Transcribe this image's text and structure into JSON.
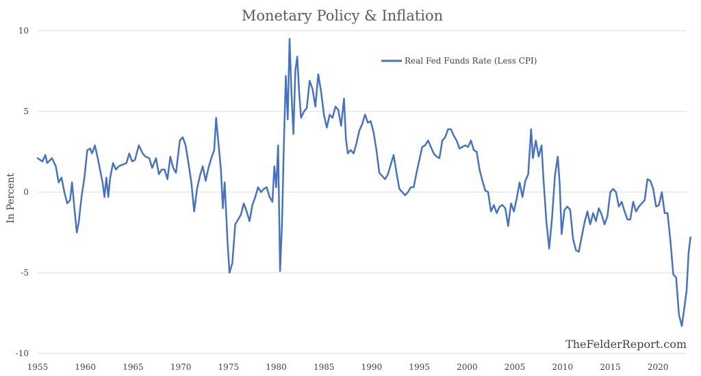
{
  "chart_data": {
    "type": "line",
    "title": "Monetary Policy & Inflation",
    "xlabel": "",
    "ylabel": "In Percent",
    "xlim": [
      1955,
      2023
    ],
    "ylim": [
      -10,
      10
    ],
    "x_ticks": [
      "1955",
      "1960",
      "1965",
      "1970",
      "1975",
      "1980",
      "1985",
      "1990",
      "1995",
      "2000",
      "2005",
      "2010",
      "2015",
      "2020"
    ],
    "y_ticks": [
      "10",
      "5",
      "0",
      "-5",
      "-10"
    ],
    "grid": "horizontal",
    "legend_position": "top-right",
    "watermark": "TheFelderReport.com",
    "series": [
      {
        "name": "Real Fed Funds Rate (Less CPI)",
        "color": "#4472C4",
        "points": [
          [
            1955.0,
            2.1
          ],
          [
            1955.5,
            1.9
          ],
          [
            1955.8,
            2.3
          ],
          [
            1956.0,
            1.8
          ],
          [
            1956.5,
            2.1
          ],
          [
            1956.9,
            1.6
          ],
          [
            1957.2,
            0.6
          ],
          [
            1957.5,
            0.9
          ],
          [
            1957.8,
            0.0
          ],
          [
            1958.1,
            -0.7
          ],
          [
            1958.4,
            -0.5
          ],
          [
            1958.6,
            0.6
          ],
          [
            1958.9,
            -1.3
          ],
          [
            1959.1,
            -2.5
          ],
          [
            1959.3,
            -1.9
          ],
          [
            1959.6,
            -0.3
          ],
          [
            1959.9,
            0.9
          ],
          [
            1960.2,
            2.6
          ],
          [
            1960.5,
            2.7
          ],
          [
            1960.7,
            2.4
          ],
          [
            1961.0,
            2.9
          ],
          [
            1961.3,
            2.1
          ],
          [
            1961.6,
            1.2
          ],
          [
            1961.8,
            0.6
          ],
          [
            1962.0,
            -0.3
          ],
          [
            1962.2,
            0.9
          ],
          [
            1962.4,
            -0.3
          ],
          [
            1962.6,
            0.9
          ],
          [
            1962.9,
            1.8
          ],
          [
            1963.2,
            1.4
          ],
          [
            1963.5,
            1.6
          ],
          [
            1963.9,
            1.7
          ],
          [
            1964.3,
            1.8
          ],
          [
            1964.6,
            2.4
          ],
          [
            1964.9,
            1.9
          ],
          [
            1965.2,
            2.0
          ],
          [
            1965.6,
            2.9
          ],
          [
            1966.0,
            2.4
          ],
          [
            1966.3,
            2.2
          ],
          [
            1966.7,
            2.1
          ],
          [
            1967.0,
            1.5
          ],
          [
            1967.4,
            2.1
          ],
          [
            1967.7,
            1.1
          ],
          [
            1968.0,
            1.4
          ],
          [
            1968.3,
            1.4
          ],
          [
            1968.6,
            0.8
          ],
          [
            1968.9,
            2.2
          ],
          [
            1969.2,
            1.5
          ],
          [
            1969.5,
            1.2
          ],
          [
            1969.9,
            3.2
          ],
          [
            1970.2,
            3.4
          ],
          [
            1970.5,
            2.9
          ],
          [
            1970.8,
            1.8
          ],
          [
            1971.1,
            0.6
          ],
          [
            1971.4,
            -1.2
          ],
          [
            1971.7,
            0.2
          ],
          [
            1972.0,
            1.0
          ],
          [
            1972.3,
            1.6
          ],
          [
            1972.6,
            0.7
          ],
          [
            1972.9,
            1.5
          ],
          [
            1973.2,
            2.1
          ],
          [
            1973.5,
            2.6
          ],
          [
            1973.7,
            4.6
          ],
          [
            1973.9,
            3.3
          ],
          [
            1974.2,
            1.4
          ],
          [
            1974.4,
            -1.0
          ],
          [
            1974.6,
            0.6
          ],
          [
            1974.9,
            -3.1
          ],
          [
            1975.1,
            -5.0
          ],
          [
            1975.4,
            -4.4
          ],
          [
            1975.7,
            -2.0
          ],
          [
            1976.0,
            -1.7
          ],
          [
            1976.3,
            -1.4
          ],
          [
            1976.6,
            -0.7
          ],
          [
            1976.9,
            -1.2
          ],
          [
            1977.2,
            -1.8
          ],
          [
            1977.5,
            -0.8
          ],
          [
            1977.8,
            -0.3
          ],
          [
            1978.1,
            0.3
          ],
          [
            1978.4,
            0.0
          ],
          [
            1978.7,
            0.2
          ],
          [
            1979.0,
            0.3
          ],
          [
            1979.3,
            -0.3
          ],
          [
            1979.6,
            -0.6
          ],
          [
            1979.8,
            1.6
          ],
          [
            1980.0,
            0.3
          ],
          [
            1980.2,
            2.9
          ],
          [
            1980.4,
            -4.9
          ],
          [
            1980.6,
            -2.0
          ],
          [
            1980.8,
            3.0
          ],
          [
            1981.0,
            7.2
          ],
          [
            1981.2,
            4.5
          ],
          [
            1981.4,
            9.5
          ],
          [
            1981.6,
            6.1
          ],
          [
            1981.8,
            3.6
          ],
          [
            1982.0,
            7.5
          ],
          [
            1982.2,
            8.4
          ],
          [
            1982.4,
            6.2
          ],
          [
            1982.6,
            4.6
          ],
          [
            1982.9,
            5.0
          ],
          [
            1983.2,
            5.2
          ],
          [
            1983.5,
            6.9
          ],
          [
            1983.8,
            6.4
          ],
          [
            1984.1,
            5.3
          ],
          [
            1984.4,
            7.3
          ],
          [
            1984.7,
            6.2
          ],
          [
            1985.0,
            4.8
          ],
          [
            1985.3,
            4.0
          ],
          [
            1985.6,
            4.8
          ],
          [
            1985.9,
            4.6
          ],
          [
            1986.2,
            5.3
          ],
          [
            1986.5,
            5.1
          ],
          [
            1986.8,
            4.1
          ],
          [
            1987.1,
            5.8
          ],
          [
            1987.3,
            3.3
          ],
          [
            1987.5,
            2.4
          ],
          [
            1987.8,
            2.6
          ],
          [
            1988.1,
            2.4
          ],
          [
            1988.4,
            3.0
          ],
          [
            1988.7,
            3.8
          ],
          [
            1989.0,
            4.2
          ],
          [
            1989.3,
            4.8
          ],
          [
            1989.6,
            4.3
          ],
          [
            1989.9,
            4.4
          ],
          [
            1990.2,
            3.7
          ],
          [
            1990.5,
            2.6
          ],
          [
            1990.8,
            1.2
          ],
          [
            1991.1,
            1.0
          ],
          [
            1991.4,
            0.8
          ],
          [
            1991.7,
            1.1
          ],
          [
            1992.0,
            1.7
          ],
          [
            1992.3,
            2.3
          ],
          [
            1992.6,
            1.2
          ],
          [
            1992.9,
            0.2
          ],
          [
            1993.2,
            0.0
          ],
          [
            1993.5,
            -0.2
          ],
          [
            1993.8,
            0.0
          ],
          [
            1994.1,
            0.3
          ],
          [
            1994.4,
            0.3
          ],
          [
            1994.7,
            1.2
          ],
          [
            1995.0,
            2.0
          ],
          [
            1995.3,
            2.8
          ],
          [
            1995.6,
            2.9
          ],
          [
            1995.9,
            3.2
          ],
          [
            1996.2,
            2.8
          ],
          [
            1996.5,
            2.4
          ],
          [
            1996.8,
            2.2
          ],
          [
            1997.1,
            2.1
          ],
          [
            1997.4,
            3.2
          ],
          [
            1997.7,
            3.4
          ],
          [
            1998.0,
            3.9
          ],
          [
            1998.3,
            3.9
          ],
          [
            1998.6,
            3.5
          ],
          [
            1998.9,
            3.2
          ],
          [
            1999.2,
            2.7
          ],
          [
            1999.5,
            2.8
          ],
          [
            1999.8,
            2.9
          ],
          [
            2000.1,
            2.8
          ],
          [
            2000.4,
            3.2
          ],
          [
            2000.7,
            2.6
          ],
          [
            2001.0,
            2.5
          ],
          [
            2001.3,
            1.4
          ],
          [
            2001.6,
            0.7
          ],
          [
            2001.9,
            0.1
          ],
          [
            2002.2,
            0.0
          ],
          [
            2002.5,
            -1.2
          ],
          [
            2002.8,
            -0.8
          ],
          [
            2003.1,
            -1.3
          ],
          [
            2003.4,
            -0.9
          ],
          [
            2003.7,
            -0.8
          ],
          [
            2004.0,
            -1.0
          ],
          [
            2004.3,
            -2.1
          ],
          [
            2004.6,
            -0.7
          ],
          [
            2004.9,
            -1.2
          ],
          [
            2005.2,
            -0.4
          ],
          [
            2005.5,
            0.6
          ],
          [
            2005.8,
            -0.3
          ],
          [
            2006.1,
            0.7
          ],
          [
            2006.4,
            1.1
          ],
          [
            2006.7,
            3.9
          ],
          [
            2006.9,
            2.1
          ],
          [
            2007.2,
            3.2
          ],
          [
            2007.5,
            2.2
          ],
          [
            2007.8,
            2.9
          ],
          [
            2008.0,
            0.8
          ],
          [
            2008.3,
            -1.8
          ],
          [
            2008.6,
            -3.5
          ],
          [
            2008.9,
            -1.6
          ],
          [
            2009.2,
            1.0
          ],
          [
            2009.5,
            2.2
          ],
          [
            2009.7,
            0.5
          ],
          [
            2009.9,
            -2.6
          ],
          [
            2010.2,
            -1.1
          ],
          [
            2010.5,
            -0.9
          ],
          [
            2010.8,
            -1.1
          ],
          [
            2011.1,
            -2.9
          ],
          [
            2011.4,
            -3.6
          ],
          [
            2011.7,
            -3.7
          ],
          [
            2012.0,
            -2.8
          ],
          [
            2012.3,
            -1.9
          ],
          [
            2012.6,
            -1.2
          ],
          [
            2012.9,
            -2.0
          ],
          [
            2013.2,
            -1.3
          ],
          [
            2013.5,
            -1.8
          ],
          [
            2013.8,
            -1.0
          ],
          [
            2014.1,
            -1.4
          ],
          [
            2014.4,
            -2.0
          ],
          [
            2014.7,
            -1.5
          ],
          [
            2015.0,
            0.0
          ],
          [
            2015.3,
            0.2
          ],
          [
            2015.6,
            0.0
          ],
          [
            2015.9,
            -0.9
          ],
          [
            2016.2,
            -0.6
          ],
          [
            2016.5,
            -1.2
          ],
          [
            2016.8,
            -1.7
          ],
          [
            2017.1,
            -1.7
          ],
          [
            2017.4,
            -0.6
          ],
          [
            2017.7,
            -1.2
          ],
          [
            2018.0,
            -0.9
          ],
          [
            2018.3,
            -0.7
          ],
          [
            2018.6,
            -0.5
          ],
          [
            2018.9,
            0.8
          ],
          [
            2019.2,
            0.7
          ],
          [
            2019.5,
            0.2
          ],
          [
            2019.8,
            -0.9
          ],
          [
            2020.1,
            -0.8
          ],
          [
            2020.4,
            0.0
          ],
          [
            2020.7,
            -1.3
          ],
          [
            2021.0,
            -1.3
          ],
          [
            2021.3,
            -3.0
          ],
          [
            2021.6,
            -5.1
          ],
          [
            2021.9,
            -5.3
          ],
          [
            2022.2,
            -7.6
          ],
          [
            2022.5,
            -8.3
          ],
          [
            2022.8,
            -7.0
          ],
          [
            2023.0,
            -6.1
          ],
          [
            2023.2,
            -3.8
          ],
          [
            2023.4,
            -2.8
          ]
        ]
      }
    ]
  }
}
